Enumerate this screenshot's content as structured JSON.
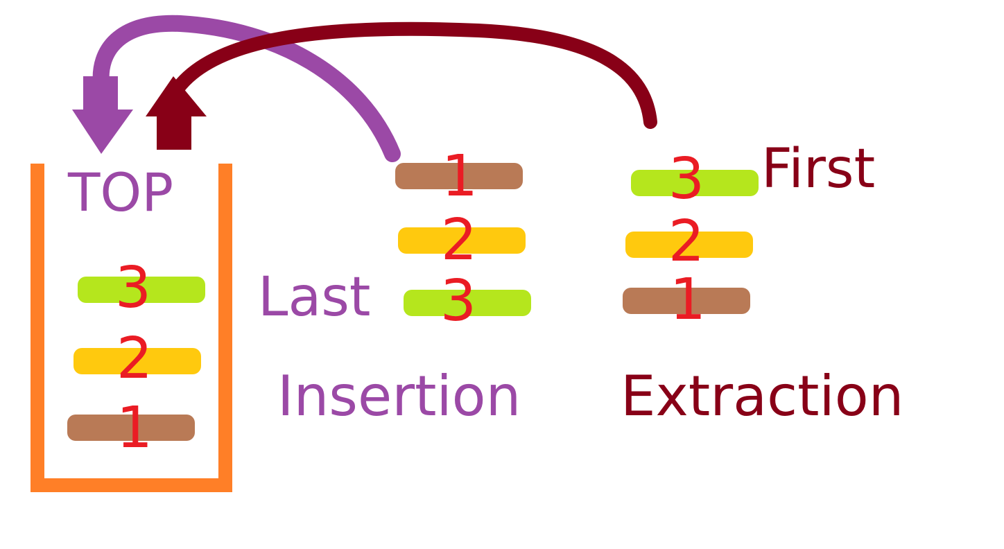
{
  "labels": {
    "top": "TOP",
    "last": "Last",
    "first": "First",
    "insertion": "Insertion",
    "extraction": "Extraction"
  },
  "colors": {
    "container": "#ff7f27",
    "insertion": "#9b49a6",
    "extraction": "#880017",
    "number": "#ea1c24",
    "item_1": "#b97a56",
    "item_2": "#ffc90e",
    "item_3": "#b5e61d"
  },
  "stack_items": [
    {
      "number": "3",
      "color": "#b5e61d"
    },
    {
      "number": "2",
      "color": "#ffc90e"
    },
    {
      "number": "1",
      "color": "#b97a56"
    }
  ],
  "insertion_items": [
    {
      "number": "1",
      "color": "#b97a56"
    },
    {
      "number": "2",
      "color": "#ffc90e"
    },
    {
      "number": "3",
      "color": "#b5e61d"
    }
  ],
  "extraction_items": [
    {
      "number": "3",
      "color": "#b5e61d"
    },
    {
      "number": "2",
      "color": "#ffc90e"
    },
    {
      "number": "1",
      "color": "#b97a56"
    }
  ],
  "icons": {
    "insertion_arrow": "curved-down-arrow",
    "extraction_arrow": "curved-up-arrow"
  }
}
